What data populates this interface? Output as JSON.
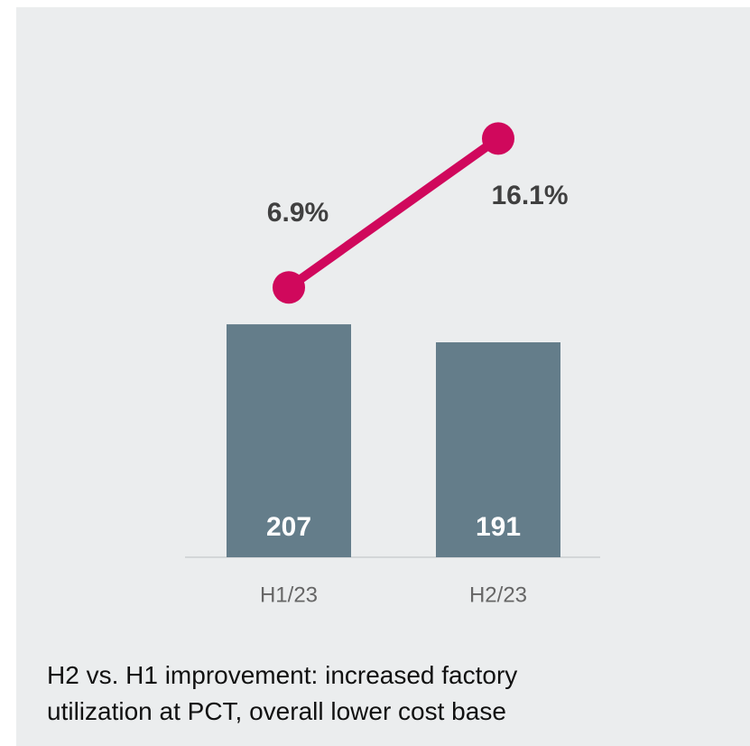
{
  "chart_data": {
    "type": "combo",
    "categories": [
      "H1/23",
      "H2/23"
    ],
    "series": [
      {
        "type": "bar",
        "color": "#647d8a",
        "values": [
          207,
          191
        ]
      },
      {
        "type": "line",
        "axis": "y2",
        "color": "#d0085c",
        "values": [
          6.9,
          16.1
        ],
        "value_labels": [
          "6.9%",
          "16.1%"
        ]
      }
    ],
    "caption": "H2 vs. H1 improvement: increased factory utilization at PCT, overall lower cost base"
  }
}
